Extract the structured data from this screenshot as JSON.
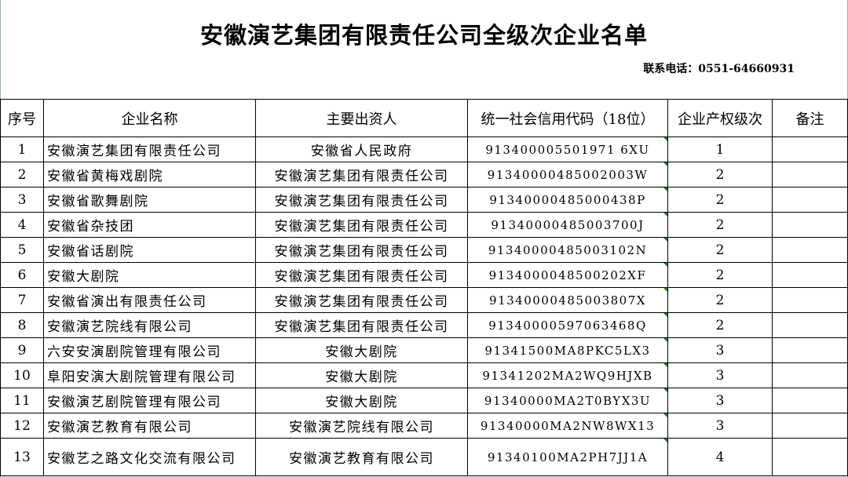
{
  "title": "安徽演艺集团有限责任公司全级次企业名单",
  "contact": "联系电话：0551-64660931",
  "headers": [
    "序号",
    "企业名称",
    "主要出资人",
    "统一社会信用代码（18位）",
    "企业产权级次",
    "备注"
  ],
  "rows": [
    {
      "no": "1",
      "name": "安徽演艺集团有限责任公司",
      "investor": "安徽省人民政府",
      "code": "913400005501971 6XU",
      "level": "1",
      "note": ""
    },
    {
      "no": "2",
      "name": "安徽省黄梅戏剧院",
      "investor": "安徽演艺集团有限责任公司",
      "code": "91340000485002003W",
      "level": "2",
      "note": ""
    },
    {
      "no": "3",
      "name": "安徽省歌舞剧院",
      "investor": "安徽演艺集团有限责任公司",
      "code": "91340000485000438P",
      "level": "2",
      "note": ""
    },
    {
      "no": "4",
      "name": "安徽省杂技团",
      "investor": "安徽演艺集团有限责任公司",
      "code": "91340000485003700J",
      "level": "2",
      "note": ""
    },
    {
      "no": "5",
      "name": "安徽省话剧院",
      "investor": "安徽演艺集团有限责任公司",
      "code": "91340000485003102N",
      "level": "2",
      "note": ""
    },
    {
      "no": "6",
      "name": "安徽大剧院",
      "investor": "安徽演艺集团有限责任公司",
      "code": "9134000048500202XF",
      "level": "2",
      "note": ""
    },
    {
      "no": "7",
      "name": "安徽省演出有限责任公司",
      "investor": "安徽演艺集团有限责任公司",
      "code": "91340000485003807X",
      "level": "2",
      "note": ""
    },
    {
      "no": "8",
      "name": "安徽演艺院线有限公司",
      "investor": "安徽演艺集团有限责任公司",
      "code": "91340000597063468Q",
      "level": "2",
      "note": ""
    },
    {
      "no": "9",
      "name": "六安安演剧院管理有限公司",
      "investor": "安徽大剧院",
      "code": "91341500MA8PKC5LX3",
      "level": "3",
      "note": ""
    },
    {
      "no": "10",
      "name": "阜阳安演大剧院管理有限公司",
      "investor": "安徽大剧院",
      "code": "91341202MA2WQ9HJXB",
      "level": "3",
      "note": ""
    },
    {
      "no": "11",
      "name": "安徽演艺剧院管理有限公司",
      "investor": "安徽大剧院",
      "code": "91340000MA2T0BYX3U",
      "level": "3",
      "note": ""
    },
    {
      "no": "12",
      "name": "安徽演艺教育有限公司",
      "investor": "安徽演艺院线有限公司",
      "code": "91340000MA2NW8WX13",
      "level": "3",
      "note": ""
    },
    {
      "no": "13",
      "name": "安徽艺之路文化交流有限公司",
      "investor": "安徽演艺教育有限公司",
      "code": "91340100MA2PH7JJ1A",
      "level": "4",
      "note": ""
    }
  ]
}
